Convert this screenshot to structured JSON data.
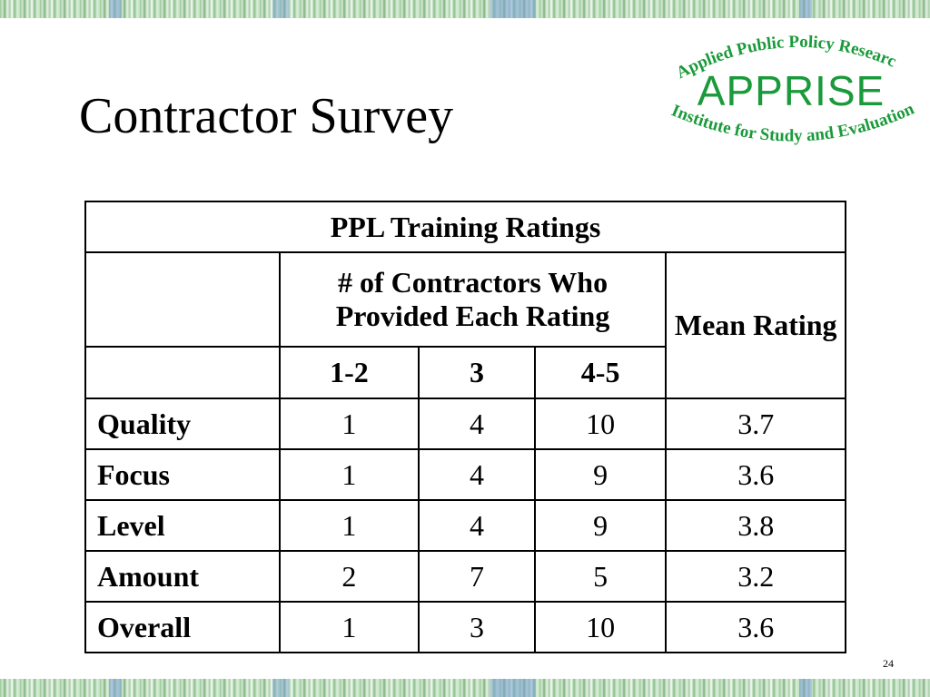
{
  "slide": {
    "title": "Contractor Survey",
    "page_number": "24"
  },
  "logo": {
    "line1": "Applied Public Policy Research",
    "name": "APPRISE",
    "line2": "Institute for Study and Evaluation",
    "color": "#1a9a3a"
  },
  "table": {
    "caption": "PPL Training Ratings",
    "group_header": "# of Contractors Who Provided Each Rating",
    "mean_header": "Mean Rating",
    "rating_columns": [
      "1-2",
      "3",
      "4-5"
    ],
    "rows": [
      {
        "label": "Quality",
        "c1": "1",
        "c2": "4",
        "c3": "10",
        "mean": "3.7"
      },
      {
        "label": "Focus",
        "c1": "1",
        "c2": "4",
        "c3": "9",
        "mean": "3.6"
      },
      {
        "label": "Level",
        "c1": "1",
        "c2": "4",
        "c3": "9",
        "mean": "3.8"
      },
      {
        "label": "Amount",
        "c1": "2",
        "c2": "7",
        "c3": "5",
        "mean": "3.2"
      },
      {
        "label": "Overall",
        "c1": "1",
        "c2": "3",
        "c3": "10",
        "mean": "3.6"
      }
    ]
  }
}
